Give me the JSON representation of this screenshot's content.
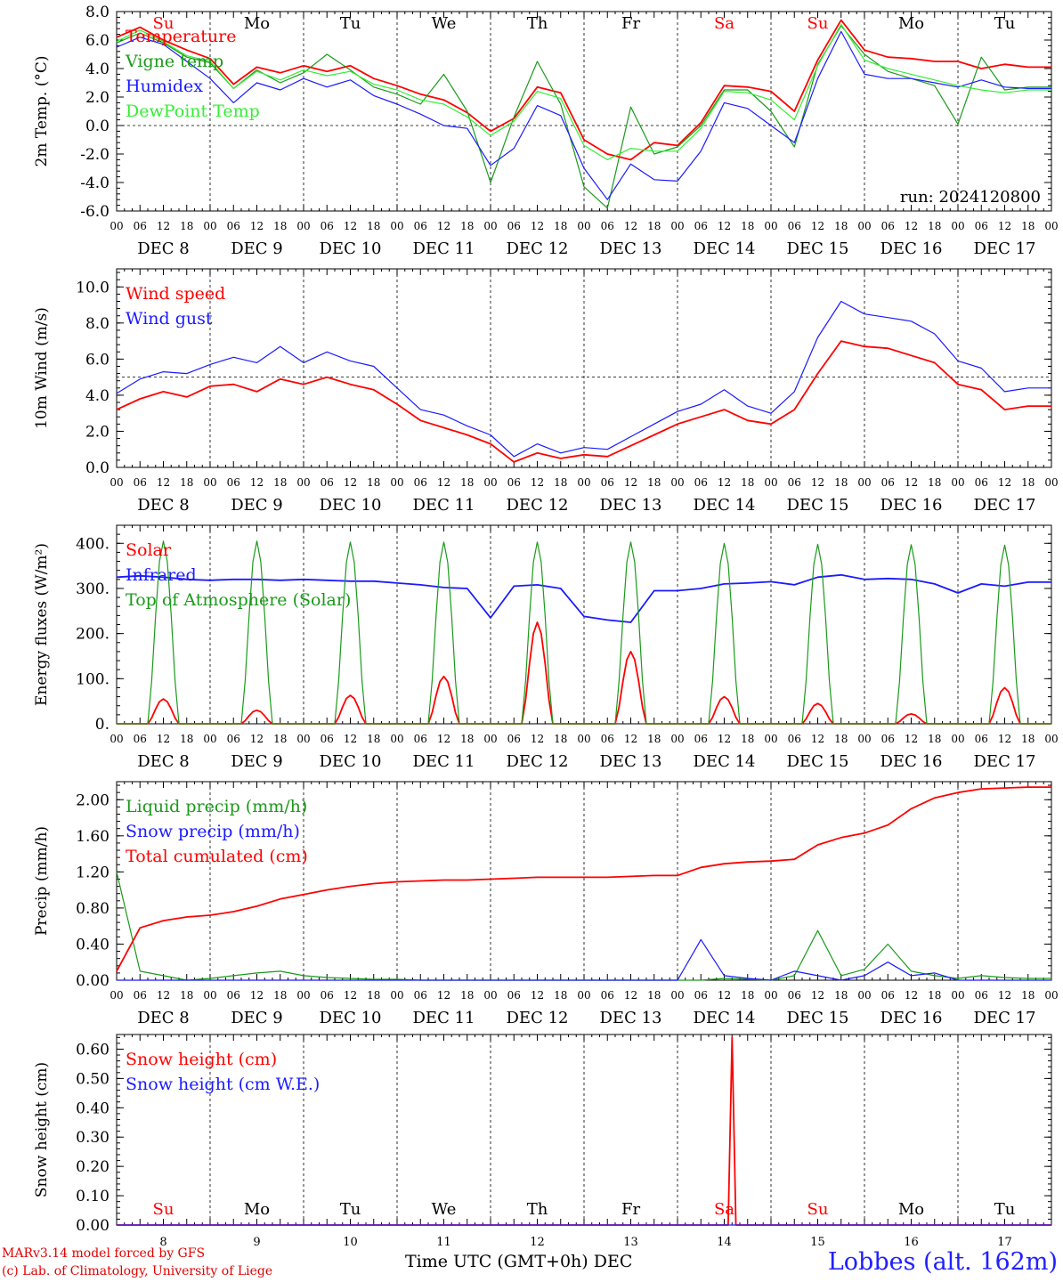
{
  "footer": {
    "credit_line1": "MARv3.14 model forced by GFS",
    "credit_line2": "(c) Lab. of Climatology, University of Liege",
    "time_axis_label": "Time UTC (GMT+0h) DEC",
    "station": "Lobbes (alt. 162m)"
  },
  "run_label": "run: 2024120800",
  "day_labels": [
    "Su",
    "Mo",
    "Tu",
    "We",
    "Th",
    "Fr",
    "Sa",
    "Su",
    "Mo",
    "Tu"
  ],
  "weekend_days": [
    "Su",
    "Sa"
  ],
  "date_labels": [
    "DEC  8",
    "DEC  9",
    "DEC 10",
    "DEC 11",
    "DEC 12",
    "DEC 13",
    "DEC 14",
    "DEC 15",
    "DEC 16",
    "DEC 17"
  ],
  "bottom_date_numbers": [
    "8",
    "9",
    "10",
    "11",
    "12",
    "13",
    "14",
    "15",
    "16",
    "17"
  ],
  "hour_ticks": [
    "00",
    "06",
    "12",
    "18"
  ],
  "colors": {
    "red": "#ff0000",
    "green": "#1a9a1a",
    "blue": "#1a1aff",
    "lightgreen": "#33ee33"
  },
  "chart_data": [
    {
      "type": "line",
      "ylabel": "2m Temp. (°C)",
      "ylim": [
        -6,
        8
      ],
      "yticks": [
        8,
        6,
        4,
        2,
        0,
        -2,
        -4,
        -6
      ],
      "yformat": 1,
      "ref_line": 0,
      "x_hours": [
        0,
        6,
        12,
        18,
        24,
        30,
        36,
        42,
        48,
        54,
        60,
        66,
        72,
        78,
        84,
        90,
        96,
        102,
        108,
        114,
        120,
        126,
        132,
        138,
        144,
        150,
        156,
        162,
        168,
        174,
        180,
        186,
        192,
        198,
        204,
        210,
        216,
        222,
        228,
        234
      ],
      "series": [
        {
          "name": "Temperature",
          "color": "red",
          "values": [
            6.2,
            6.9,
            6.0,
            5.3,
            4.7,
            2.9,
            4.1,
            3.7,
            4.2,
            3.8,
            4.2,
            3.3,
            2.8,
            2.2,
            1.8,
            0.9,
            -0.4,
            0.5,
            2.7,
            2.3,
            -1.0,
            -2.0,
            -2.4,
            -1.2,
            -1.4,
            0.2,
            2.8,
            2.7,
            2.4,
            1.0,
            4.6,
            7.4,
            5.3,
            4.8,
            4.7,
            4.5,
            4.5,
            4.0,
            4.3,
            4.1
          ]
        },
        {
          "name": "Vigne temp",
          "color": "green",
          "values": [
            5.8,
            6.5,
            5.8,
            4.8,
            4.4,
            2.6,
            3.9,
            3.0,
            3.7,
            5.0,
            3.9,
            2.7,
            2.2,
            1.5,
            3.6,
            1.0,
            -4.0,
            0.6,
            4.5,
            1.5,
            -4.3,
            -5.8,
            1.3,
            -2.0,
            -1.5,
            0.0,
            2.5,
            2.5,
            1.0,
            -1.5,
            4.3,
            7.0,
            5.0,
            3.8,
            3.3,
            2.8,
            0.1,
            4.8,
            2.5,
            2.7
          ]
        },
        {
          "name": "Humidex",
          "color": "blue",
          "values": [
            5.5,
            6.2,
            5.7,
            4.5,
            3.3,
            1.6,
            3.0,
            2.5,
            3.3,
            2.7,
            3.2,
            2.1,
            1.5,
            0.8,
            0.0,
            -0.2,
            -2.8,
            -1.6,
            1.4,
            0.7,
            -3.0,
            -5.2,
            -2.7,
            -3.8,
            -3.9,
            -1.8,
            1.6,
            1.2,
            0.0,
            -1.2,
            3.3,
            6.6,
            3.6,
            3.3,
            3.3,
            3.0,
            2.7,
            3.2,
            2.7,
            2.6
          ]
        },
        {
          "name": "DewPoint Temp",
          "color": "lightgreen",
          "values": [
            5.9,
            6.7,
            5.9,
            4.9,
            4.5,
            2.6,
            3.8,
            3.2,
            3.9,
            3.5,
            3.8,
            2.9,
            2.5,
            1.8,
            1.5,
            0.6,
            -0.7,
            0.3,
            2.4,
            1.9,
            -1.4,
            -2.4,
            -1.6,
            -1.8,
            -1.8,
            -0.2,
            2.4,
            2.3,
            1.8,
            0.4,
            4.2,
            7.1,
            4.6,
            4.0,
            3.6,
            3.2,
            2.8,
            2.5,
            2.3,
            2.5
          ]
        }
      ]
    },
    {
      "type": "line",
      "ylabel": "10m Wind (m/s)",
      "ylim": [
        0,
        11
      ],
      "yticks": [
        10,
        8,
        6,
        4,
        2,
        0
      ],
      "yformat": 1,
      "ref_line": 5,
      "x_hours": [
        0,
        6,
        12,
        18,
        24,
        30,
        36,
        42,
        48,
        54,
        60,
        66,
        72,
        78,
        84,
        90,
        96,
        102,
        108,
        114,
        120,
        126,
        132,
        138,
        144,
        150,
        156,
        162,
        168,
        174,
        180,
        186,
        192,
        198,
        204,
        210,
        216,
        222,
        228,
        234
      ],
      "series": [
        {
          "name": "Wind speed",
          "color": "red",
          "values": [
            3.2,
            3.8,
            4.2,
            3.9,
            4.5,
            4.6,
            4.2,
            4.9,
            4.6,
            5.0,
            4.6,
            4.3,
            3.5,
            2.6,
            2.2,
            1.8,
            1.3,
            0.3,
            0.8,
            0.5,
            0.7,
            0.6,
            1.2,
            1.8,
            2.4,
            2.8,
            3.2,
            2.6,
            2.4,
            3.2,
            5.2,
            7.0,
            6.7,
            6.6,
            6.2,
            5.8,
            4.6,
            4.3,
            3.2,
            3.4
          ]
        },
        {
          "name": "Wind gust",
          "color": "blue",
          "values": [
            4.1,
            4.9,
            5.3,
            5.2,
            5.7,
            6.1,
            5.8,
            6.7,
            5.8,
            6.4,
            5.9,
            5.6,
            4.4,
            3.2,
            2.9,
            2.3,
            1.8,
            0.6,
            1.3,
            0.8,
            1.1,
            1.0,
            1.7,
            2.4,
            3.1,
            3.5,
            4.3,
            3.4,
            3.0,
            4.2,
            7.2,
            9.2,
            8.5,
            8.3,
            8.1,
            7.4,
            5.9,
            5.5,
            4.2,
            4.4
          ]
        }
      ]
    },
    {
      "type": "line",
      "ylabel": "Energy fluxes (W/m²)",
      "ylim": [
        0,
        440
      ],
      "yticks": [
        400,
        300,
        200,
        100,
        0
      ],
      "yformat": "dot",
      "x_hours": [
        0,
        6,
        12,
        18,
        24,
        30,
        36,
        42,
        48,
        54,
        60,
        66,
        72,
        78,
        84,
        90,
        96,
        102,
        108,
        114,
        120,
        126,
        132,
        138,
        144,
        150,
        156,
        162,
        168,
        174,
        180,
        186,
        192,
        198,
        204,
        210,
        216,
        222,
        228,
        234
      ],
      "series": [
        {
          "name": "Solar",
          "color": "red",
          "diurnal": [
            55,
            30,
            63,
            105,
            225,
            160,
            60,
            45,
            22,
            80
          ]
        },
        {
          "name": "Infrared",
          "color": "blue",
          "values": [
            325,
            328,
            325,
            320,
            318,
            320,
            320,
            318,
            320,
            318,
            316,
            316,
            312,
            308,
            302,
            300,
            235,
            305,
            308,
            300,
            238,
            230,
            225,
            295,
            295,
            300,
            310,
            312,
            315,
            308,
            325,
            330,
            320,
            322,
            320,
            310,
            290,
            310,
            305,
            314
          ]
        },
        {
          "name": "Top of Atmosphere (Solar)",
          "color": "green",
          "diurnal": [
            405,
            405,
            403,
            403,
            403,
            403,
            400,
            398,
            397,
            396
          ]
        }
      ]
    },
    {
      "type": "line",
      "ylabel": "Precip (mm/h)",
      "ylim": [
        0,
        2.2
      ],
      "yticks": [
        2.0,
        1.6,
        1.2,
        0.8,
        0.4,
        0.0
      ],
      "yformat": 2,
      "x_hours": [
        0,
        6,
        12,
        18,
        24,
        30,
        36,
        42,
        48,
        54,
        60,
        66,
        72,
        78,
        84,
        90,
        96,
        102,
        108,
        114,
        120,
        126,
        132,
        138,
        144,
        150,
        156,
        162,
        168,
        174,
        180,
        186,
        192,
        198,
        204,
        210,
        216,
        222,
        228,
        234
      ],
      "series": [
        {
          "name": "Liquid precip (mm/h)",
          "color": "green",
          "values": [
            1.2,
            0.1,
            0.05,
            0.0,
            0.02,
            0.05,
            0.08,
            0.1,
            0.05,
            0.03,
            0.02,
            0.01,
            0.01,
            0.0,
            0.0,
            0.0,
            0.0,
            0.0,
            0.0,
            0.0,
            0.0,
            0.0,
            0.0,
            0.0,
            0.0,
            0.0,
            0.02,
            0.01,
            0.0,
            0.05,
            0.55,
            0.05,
            0.12,
            0.4,
            0.1,
            0.05,
            0.02,
            0.05,
            0.03,
            0.02
          ]
        },
        {
          "name": "Snow precip (mm/h)",
          "color": "blue",
          "values": [
            0,
            0,
            0,
            0,
            0,
            0,
            0,
            0,
            0,
            0,
            0,
            0,
            0,
            0,
            0,
            0,
            0,
            0,
            0,
            0,
            0,
            0,
            0,
            0,
            0,
            0.45,
            0.05,
            0.02,
            0.0,
            0.1,
            0.05,
            0.0,
            0.05,
            0.2,
            0.05,
            0.08,
            0.0,
            0.0,
            0.0,
            0.0
          ]
        },
        {
          "name": "Total cumulated (cm)",
          "color": "red",
          "values": [
            0.1,
            0.58,
            0.66,
            0.7,
            0.72,
            0.76,
            0.82,
            0.9,
            0.95,
            1.0,
            1.04,
            1.07,
            1.09,
            1.1,
            1.11,
            1.11,
            1.12,
            1.13,
            1.14,
            1.14,
            1.14,
            1.14,
            1.15,
            1.16,
            1.16,
            1.25,
            1.29,
            1.31,
            1.32,
            1.34,
            1.5,
            1.58,
            1.63,
            1.72,
            1.9,
            2.02,
            2.08,
            2.12,
            2.13,
            2.14
          ]
        }
      ]
    },
    {
      "type": "line",
      "ylabel": "Snow height (cm)",
      "ylim": [
        0,
        0.65
      ],
      "yticks": [
        0.6,
        0.5,
        0.4,
        0.3,
        0.2,
        0.1,
        0.0
      ],
      "yformat": 2,
      "series": [
        {
          "name": "Snow height (cm)",
          "color": "red",
          "spike": {
            "hour": 158,
            "value": 0.64
          }
        },
        {
          "name": "Snow height (cm W.E.)",
          "color": "blue"
        }
      ]
    }
  ]
}
